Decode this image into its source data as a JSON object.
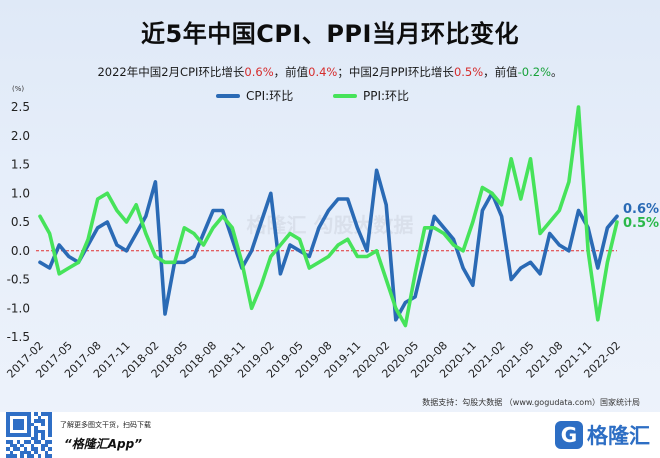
{
  "title": "近5年中国CPI、PPI当月环比变化",
  "subtitle": {
    "p1": "2022年中国2月CPI环比增长",
    "cpi_now": "0.6%",
    "p2": "，前值",
    "cpi_prev": "0.4%",
    "p3": "；中国2月PPI环比增长",
    "ppi_now": "0.5%",
    "p4": "，前值",
    "ppi_prev": "-0.2%",
    "p5": "。"
  },
  "colors": {
    "cpi": "#2a6ab5",
    "ppi": "#46e35a",
    "zero_line": "#e03030",
    "axis_text": "#222222"
  },
  "source": "数据支持：勾股大数据  （www.gogudata.com）国家统计局",
  "footer": {
    "line1": "了解更多图文干货，扫码下载",
    "app": "“格隆汇App”",
    "logo_mark": "G",
    "logo": "格隆汇"
  },
  "watermark": "格隆汇  勾股大数据",
  "chart_data": {
    "type": "line",
    "unit_label": "(%)",
    "ylim": [
      -1.5,
      2.5
    ],
    "yticks": [
      "-1.5",
      "-1.0",
      "-0.5",
      "0.0",
      "0.5",
      "1.0",
      "1.5",
      "2.0",
      "2.5"
    ],
    "x": [
      "2017-02",
      "2017-03",
      "2017-04",
      "2017-05",
      "2017-06",
      "2017-07",
      "2017-08",
      "2017-09",
      "2017-10",
      "2017-11",
      "2017-12",
      "2018-01",
      "2018-02",
      "2018-03",
      "2018-04",
      "2018-05",
      "2018-06",
      "2018-07",
      "2018-08",
      "2018-09",
      "2018-10",
      "2018-11",
      "2018-12",
      "2019-01",
      "2019-02",
      "2019-03",
      "2019-04",
      "2019-05",
      "2019-06",
      "2019-07",
      "2019-08",
      "2019-09",
      "2019-10",
      "2019-11",
      "2019-12",
      "2020-01",
      "2020-02",
      "2020-03",
      "2020-04",
      "2020-05",
      "2020-06",
      "2020-07",
      "2020-08",
      "2020-09",
      "2020-10",
      "2020-11",
      "2020-12",
      "2021-01",
      "2021-02",
      "2021-03",
      "2021-04",
      "2021-05",
      "2021-06",
      "2021-07",
      "2021-08",
      "2021-09",
      "2021-10",
      "2021-11",
      "2021-12",
      "2022-01",
      "2022-02"
    ],
    "xtick_labels": [
      "2017-02",
      "2017-05",
      "2017-08",
      "2017-11",
      "2018-02",
      "2018-05",
      "2018-08",
      "2018-11",
      "2019-02",
      "2019-05",
      "2019-08",
      "2019-11",
      "2020-02",
      "2020-05",
      "2020-08",
      "2020-11",
      "2021-02",
      "2021-05",
      "2021-08",
      "2021-11",
      "2022-02"
    ],
    "series": [
      {
        "name": "CPI:环比",
        "values": [
          -0.2,
          -0.3,
          0.1,
          -0.1,
          -0.2,
          0.1,
          0.4,
          0.5,
          0.1,
          0.0,
          0.3,
          0.6,
          1.2,
          -1.1,
          -0.2,
          -0.2,
          -0.1,
          0.3,
          0.7,
          0.7,
          0.2,
          -0.3,
          0.0,
          0.5,
          1.0,
          -0.4,
          0.1,
          0.0,
          -0.1,
          0.4,
          0.7,
          0.9,
          0.9,
          0.4,
          0.0,
          1.4,
          0.8,
          -1.2,
          -0.9,
          -0.8,
          -0.1,
          0.6,
          0.4,
          0.2,
          -0.3,
          -0.6,
          0.7,
          1.0,
          0.6,
          -0.5,
          -0.3,
          -0.2,
          -0.4,
          0.3,
          0.1,
          0.0,
          0.7,
          0.4,
          -0.3,
          0.4,
          0.6
        ]
      },
      {
        "name": "PPI:环比",
        "values": [
          0.6,
          0.3,
          -0.4,
          -0.3,
          -0.2,
          0.2,
          0.9,
          1.0,
          0.7,
          0.5,
          0.8,
          0.3,
          -0.1,
          -0.2,
          -0.2,
          0.4,
          0.3,
          0.1,
          0.4,
          0.6,
          0.4,
          -0.2,
          -1.0,
          -0.6,
          -0.1,
          0.1,
          0.3,
          0.2,
          -0.3,
          -0.2,
          -0.1,
          0.1,
          0.2,
          -0.1,
          -0.1,
          0.0,
          -0.5,
          -1.0,
          -1.3,
          -0.4,
          0.4,
          0.4,
          0.3,
          0.1,
          0.0,
          0.5,
          1.1,
          1.0,
          0.8,
          1.6,
          0.9,
          1.6,
          0.3,
          0.5,
          0.7,
          1.2,
          2.5,
          0.0,
          -1.2,
          -0.2,
          0.5
        ]
      }
    ],
    "end_labels": [
      "0.6%",
      "0.5%"
    ],
    "legend_position": "top-center",
    "grid": false
  }
}
